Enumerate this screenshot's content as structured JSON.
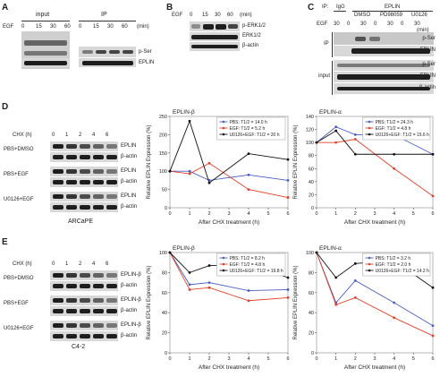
{
  "panels": {
    "A": {
      "letter": "A",
      "group1": "input",
      "group2": "IP",
      "egf_label": "EGF",
      "times": [
        "0",
        "15",
        "30",
        "60",
        "0",
        "15",
        "30",
        "60"
      ],
      "unit": "(min)",
      "bands": [
        "p-Ser",
        "EPLIN"
      ]
    },
    "B": {
      "letter": "B",
      "egf_label": "EGF",
      "times": [
        "0",
        "15",
        "30",
        "60"
      ],
      "unit": "(min)",
      "bands": [
        "p-ERK1/2",
        "ERK1/2",
        "β-actin"
      ]
    },
    "C": {
      "letter": "C",
      "ip_label": "IP:",
      "igg": "IgG",
      "eplin": "EPLIN",
      "treatments": [
        "DMSO",
        "PD98059",
        "U0126"
      ],
      "egf_label": "EGF",
      "times": [
        "30",
        "0",
        "30",
        "0",
        "30",
        "0",
        "30"
      ],
      "unit": "(min)",
      "ip_side": "IP",
      "input_side": "input",
      "bands": [
        "p-Ser",
        "EPLIN",
        "p-Ser",
        "EPLIN",
        "β-actin"
      ]
    },
    "D": {
      "letter": "D",
      "chx_label": "CHX (h)",
      "times": [
        "0",
        "1",
        "2",
        "4",
        "6"
      ],
      "rows": [
        {
          "name": "PBS+DMSO",
          "bands": [
            "EPLIN",
            "β-actin"
          ]
        },
        {
          "name": "PBS+EGF",
          "bands": [
            "EPLIN",
            "β-actin"
          ]
        },
        {
          "name": "U0126+EGF",
          "bands": [
            "EPLIN",
            "β-actin"
          ]
        }
      ],
      "cell_line": "ARCaPE"
    },
    "E": {
      "letter": "E",
      "chx_label": "CHX (h)",
      "times": [
        "0",
        "1",
        "2",
        "4",
        "6"
      ],
      "rows": [
        {
          "name": "PBS+DMSO",
          "bands": [
            "EPLIN-β",
            "β-actin"
          ]
        },
        {
          "name": "PBS+EGF",
          "bands": [
            "EPLIN-β",
            "β-actin"
          ]
        },
        {
          "name": "U0126+EGF",
          "bands": [
            "EPLIN-β",
            "β-actin"
          ]
        }
      ],
      "cell_line": "C4-2"
    }
  },
  "series_colors": {
    "PBS": "#4a5fc1",
    "EGF": "#e0412a",
    "U0126+EGF": "#111111"
  },
  "chart_data": [
    {
      "id": "D1",
      "type": "line",
      "title": "EPLIN-β",
      "xlabel": "After CHX treatment (h)",
      "ylabel": "Relative EPLIN Expression (%)",
      "xlim": [
        0,
        6
      ],
      "ylim": [
        0,
        250
      ],
      "yticks": [
        0,
        50,
        100,
        150,
        200,
        250
      ],
      "xticks": [
        0,
        1,
        2,
        3,
        4,
        5,
        6
      ],
      "grid": false,
      "legend_position": "top-right",
      "series": [
        {
          "name": "PBS: T1/2 = 14.0 h",
          "color": "#4a5fc1",
          "x": [
            0,
            1,
            2,
            4,
            6
          ],
          "y": [
            100,
            100,
            75,
            90,
            75
          ]
        },
        {
          "name": "EGF: T1/2 = 5.2 h",
          "color": "#e0412a",
          "x": [
            0,
            1,
            2,
            4,
            6
          ],
          "y": [
            100,
            93,
            122,
            50,
            28
          ]
        },
        {
          "name": "U0126+EGF: T1/2 = 20 h",
          "color": "#111111",
          "x": [
            0,
            1,
            2,
            4,
            6
          ],
          "y": [
            100,
            237,
            68,
            148,
            132
          ]
        }
      ]
    },
    {
      "id": "D2",
      "type": "line",
      "title": "EPLIN-α",
      "xlabel": "After CHX treatment (h)",
      "ylabel": "Relative EPLIN Expression (%)",
      "xlim": [
        0,
        6
      ],
      "ylim": [
        0,
        140
      ],
      "yticks": [
        0,
        20,
        40,
        60,
        80,
        100,
        120,
        140
      ],
      "xticks": [
        0,
        1,
        2,
        3,
        4,
        5,
        6
      ],
      "grid": false,
      "legend_position": "top-right",
      "series": [
        {
          "name": "PBS: T1/2 = 24.3 h",
          "color": "#4a5fc1",
          "x": [
            0,
            1,
            2,
            4,
            6
          ],
          "y": [
            100,
            124,
            112,
            112,
            82
          ]
        },
        {
          "name": "EGF: T1/2 = 4.8 h",
          "color": "#e0412a",
          "x": [
            0,
            1,
            2,
            4,
            6
          ],
          "y": [
            100,
            100,
            105,
            60,
            18
          ]
        },
        {
          "name": "U0126+EGF: T1/2 = 15.6 h",
          "color": "#111111",
          "x": [
            0,
            1,
            2,
            4,
            6
          ],
          "y": [
            100,
            118,
            82,
            82,
            82
          ]
        }
      ]
    },
    {
      "id": "E1",
      "type": "line",
      "title": "EPLIN-β",
      "xlabel": "After CHX treatment (h)",
      "ylabel": "Relative EPLIN Expression (%)",
      "xlim": [
        0,
        6
      ],
      "ylim": [
        0,
        100
      ],
      "yticks": [
        0,
        20,
        40,
        60,
        80,
        100
      ],
      "xticks": [
        0,
        1,
        2,
        3,
        4,
        5,
        6
      ],
      "grid": false,
      "legend_position": "top-right",
      "series": [
        {
          "name": "PBS: T1/2 = 8.2 h",
          "color": "#4a5fc1",
          "x": [
            0,
            1,
            2,
            4,
            6
          ],
          "y": [
            100,
            68,
            70,
            62,
            63
          ]
        },
        {
          "name": "EGF: T1/2 = 4.8 h",
          "color": "#e0412a",
          "x": [
            0,
            1,
            2,
            4,
            6
          ],
          "y": [
            100,
            63,
            65,
            52,
            55
          ]
        },
        {
          "name": "U0126+EGF: T1/2 = 19.8 h",
          "color": "#111111",
          "x": [
            0,
            1,
            2,
            4,
            6
          ],
          "y": [
            100,
            80,
            87,
            88,
            75
          ]
        }
      ]
    },
    {
      "id": "E2",
      "type": "line",
      "title": "EPLIN-α",
      "xlabel": "After CHX treatment (h)",
      "ylabel": "Relative EPLIN Expression (%)",
      "xlim": [
        0,
        6
      ],
      "ylim": [
        0,
        100
      ],
      "yticks": [
        0,
        20,
        40,
        60,
        80,
        100
      ],
      "xticks": [
        0,
        1,
        2,
        3,
        4,
        5,
        6
      ],
      "grid": false,
      "legend_position": "top-right",
      "series": [
        {
          "name": "PBS: T1/2 = 3.2 h",
          "color": "#4a5fc1",
          "x": [
            0,
            1,
            2,
            4,
            6
          ],
          "y": [
            100,
            50,
            72,
            50,
            27
          ]
        },
        {
          "name": "EGF: T1/2 = 2.0 h",
          "color": "#e0412a",
          "x": [
            0,
            1,
            2,
            4,
            6
          ],
          "y": [
            100,
            48,
            55,
            35,
            17
          ]
        },
        {
          "name": "U0126+EGF: T1/2 = 14.2 h",
          "color": "#111111",
          "x": [
            0,
            1,
            2,
            4,
            6
          ],
          "y": [
            100,
            75,
            89,
            92,
            65
          ]
        }
      ]
    }
  ]
}
